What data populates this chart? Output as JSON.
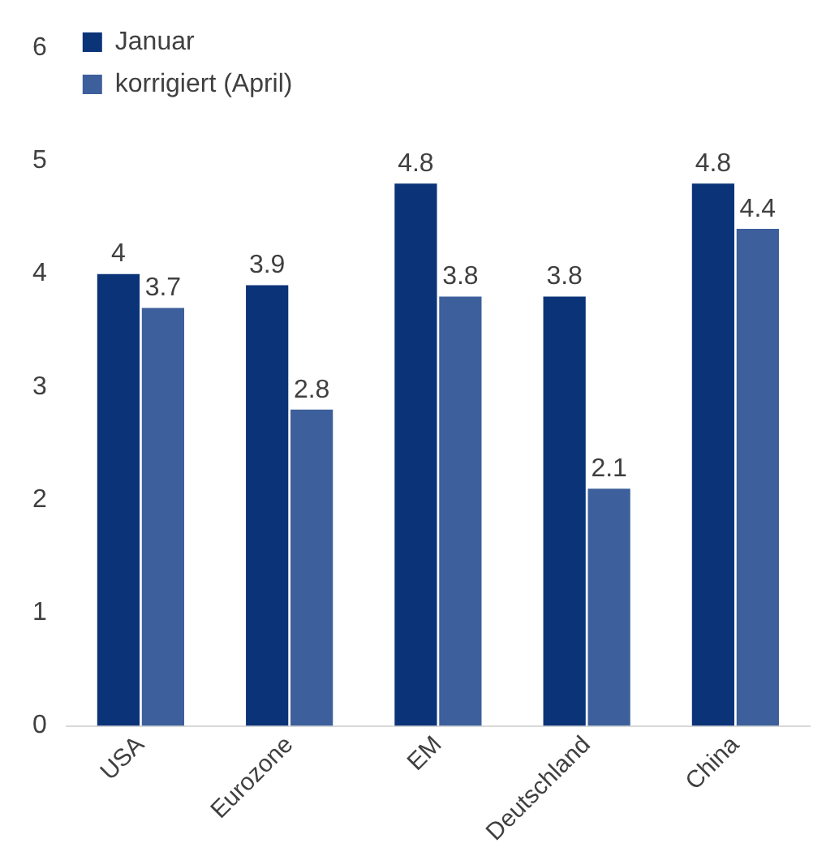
{
  "chart_data": {
    "type": "bar",
    "categories": [
      "USA",
      "Eurozone",
      "EM",
      "Deutschland",
      "China"
    ],
    "series": [
      {
        "name": "Januar",
        "color": "#0b3378",
        "values": [
          4,
          3.9,
          4.8,
          3.8,
          4.8
        ]
      },
      {
        "name": "korrigiert (April)",
        "color": "#3d5f9b",
        "values": [
          3.7,
          2.8,
          3.8,
          2.1,
          4.4
        ]
      }
    ],
    "ylim": [
      0,
      6
    ],
    "yticks": [
      0,
      1,
      2,
      3,
      4,
      5,
      6
    ],
    "grid": false,
    "legend": "top left",
    "data_labels": true
  }
}
